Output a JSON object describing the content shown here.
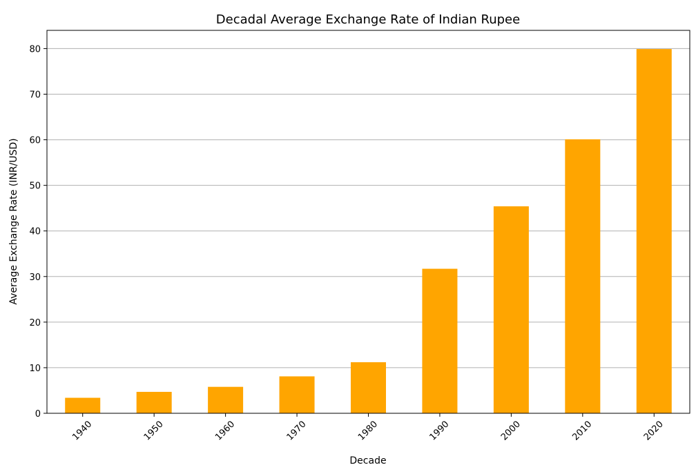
{
  "chart_data": {
    "type": "bar",
    "title": "Decadal Average Exchange Rate of Indian Rupee",
    "xlabel": "Decade",
    "ylabel": "Average Exchange Rate (INR/USD)",
    "categories": [
      "1940",
      "1950",
      "1960",
      "1970",
      "1980",
      "1990",
      "2000",
      "2010",
      "2020"
    ],
    "values": [
      3.4,
      4.7,
      5.8,
      8.1,
      11.2,
      31.7,
      45.4,
      60.1,
      79.9
    ],
    "ylim": [
      0,
      84
    ],
    "yticks": [
      0,
      10,
      20,
      30,
      40,
      50,
      60,
      70,
      80
    ],
    "grid": "y-axis",
    "legend": "none",
    "bar_color": "#FFA500",
    "grid_color": "#b0b0b0",
    "axis_color": "#000000"
  }
}
